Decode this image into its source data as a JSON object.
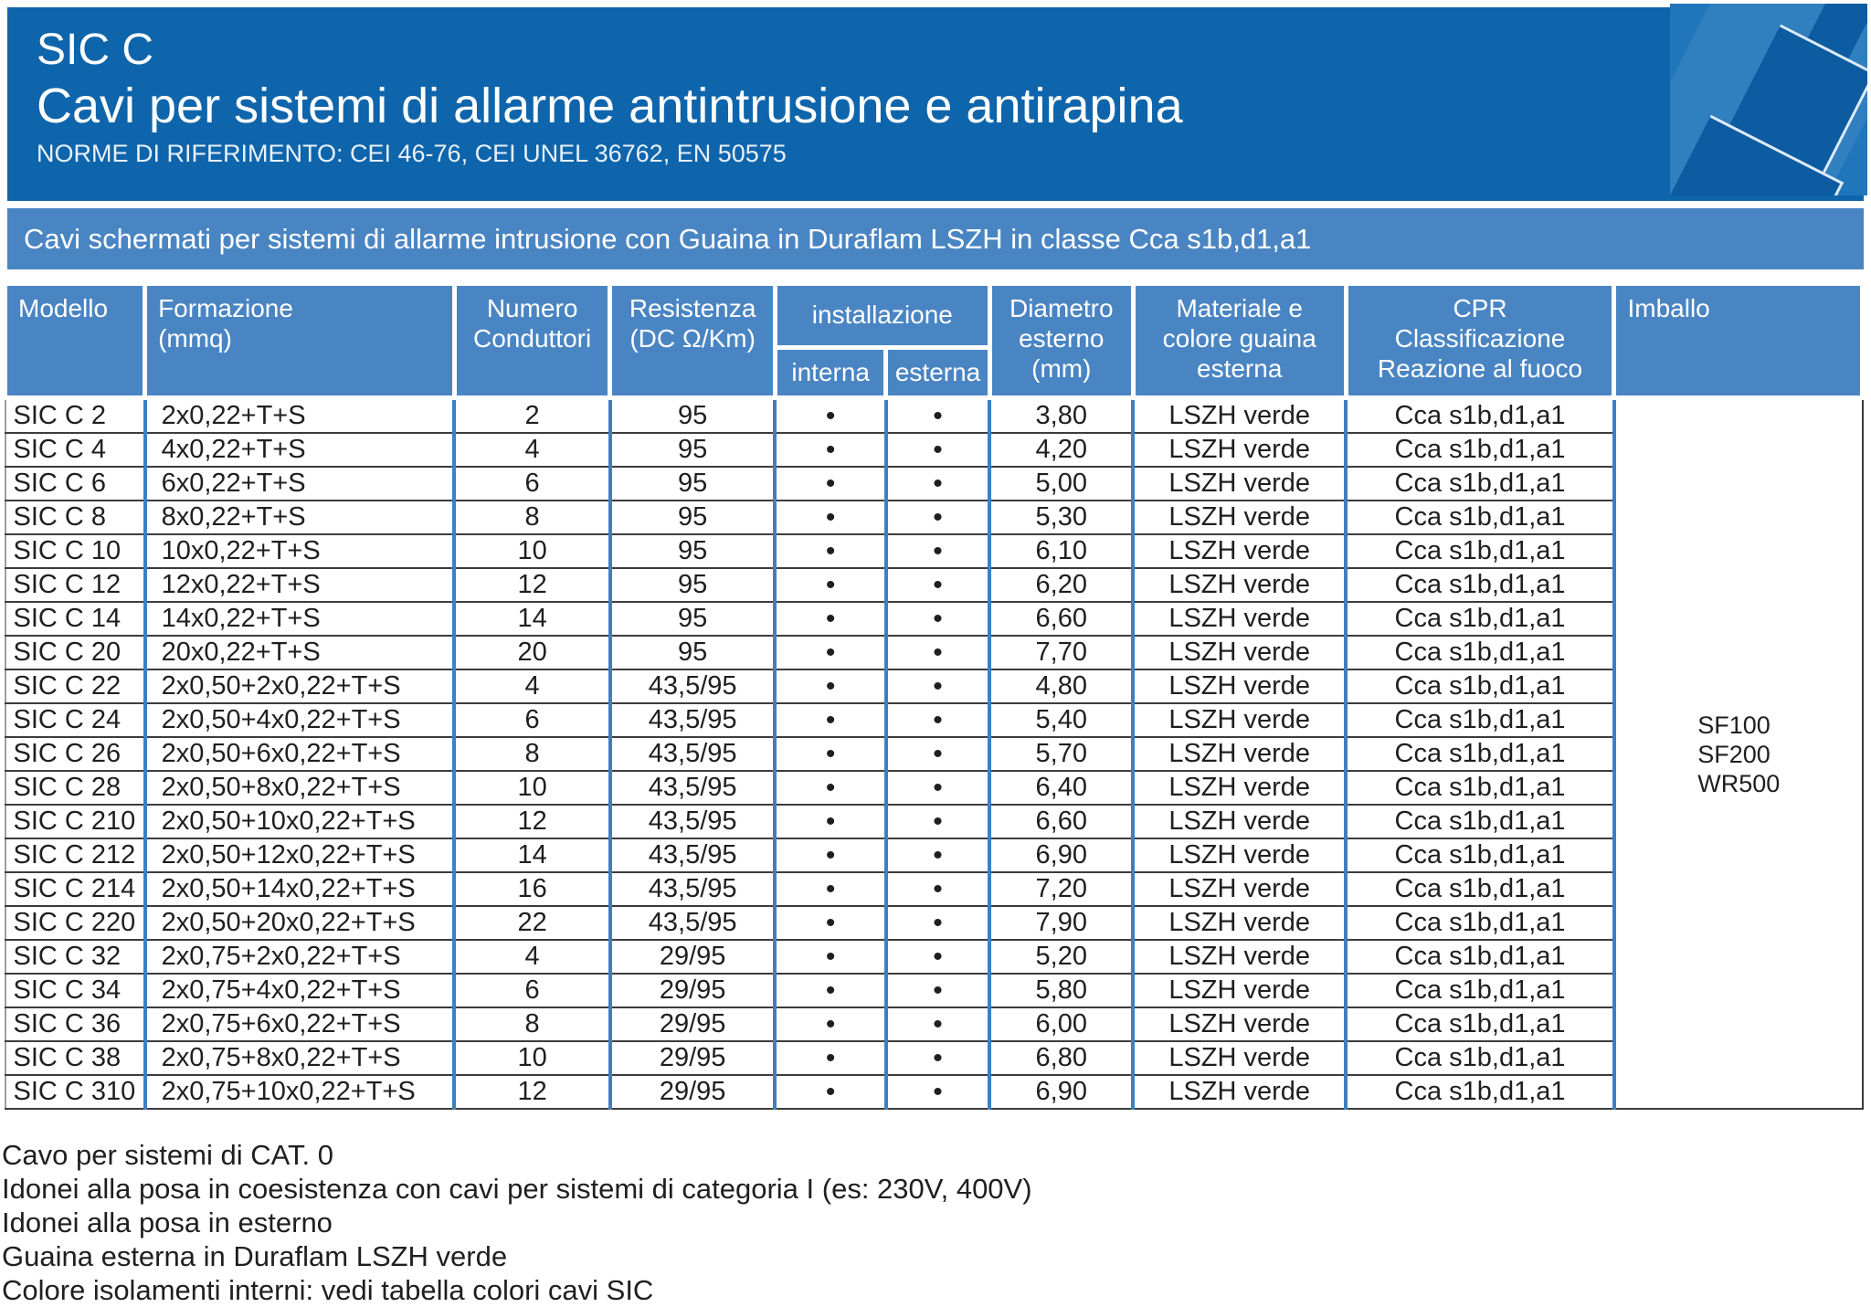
{
  "header": {
    "product": "SIC C",
    "title": "Cavi per sistemi di allarme antintrusione e antirapina",
    "norms": "NORME DI RIFERIMENTO: CEI 46-76, CEI UNEL 36762, EN 50575"
  },
  "banner": {
    "text": "Cavi schermati per sistemi di allarme intrusione con Guaina in Duraflam LSZH in classe Cca s1b,d1,a1"
  },
  "table": {
    "headers": {
      "modello": "Modello",
      "formazione": "Formazione\n(mmq)",
      "numero": "Numero\nConduttori",
      "resistenza": "Resistenza\n(DC Ω/Km)",
      "installazione": "installazione",
      "interna": "interna",
      "esterna": "esterna",
      "diametro": "Diametro\nesterno\n(mm)",
      "materiale": "Materiale e\ncolore guaina\nesterna",
      "cpr": "CPR\nClassificazione\nReazione al fuoco",
      "imballo": "Imballo"
    },
    "dot": "•",
    "imballo": [
      "SF100",
      "SF200",
      "WR500"
    ],
    "rows": [
      {
        "model": "SIC C 2",
        "formation": "2x0,22+T+S",
        "conductors": "2",
        "resistance": "95",
        "interna": true,
        "esterna": true,
        "diameter": "3,80",
        "material": "LSZH verde",
        "cpr": "Cca s1b,d1,a1"
      },
      {
        "model": "SIC C 4",
        "formation": "4x0,22+T+S",
        "conductors": "4",
        "resistance": "95",
        "interna": true,
        "esterna": true,
        "diameter": "4,20",
        "material": "LSZH verde",
        "cpr": "Cca s1b,d1,a1"
      },
      {
        "model": "SIC C 6",
        "formation": "6x0,22+T+S",
        "conductors": "6",
        "resistance": "95",
        "interna": true,
        "esterna": true,
        "diameter": "5,00",
        "material": "LSZH verde",
        "cpr": "Cca s1b,d1,a1"
      },
      {
        "model": "SIC C 8",
        "formation": "8x0,22+T+S",
        "conductors": "8",
        "resistance": "95",
        "interna": true,
        "esterna": true,
        "diameter": "5,30",
        "material": "LSZH verde",
        "cpr": "Cca s1b,d1,a1"
      },
      {
        "model": "SIC C 10",
        "formation": "10x0,22+T+S",
        "conductors": "10",
        "resistance": "95",
        "interna": true,
        "esterna": true,
        "diameter": "6,10",
        "material": "LSZH verde",
        "cpr": "Cca s1b,d1,a1"
      },
      {
        "model": "SIC C 12",
        "formation": "12x0,22+T+S",
        "conductors": "12",
        "resistance": "95",
        "interna": true,
        "esterna": true,
        "diameter": "6,20",
        "material": "LSZH verde",
        "cpr": "Cca s1b,d1,a1"
      },
      {
        "model": "SIC C 14",
        "formation": "14x0,22+T+S",
        "conductors": "14",
        "resistance": "95",
        "interna": true,
        "esterna": true,
        "diameter": "6,60",
        "material": "LSZH verde",
        "cpr": "Cca s1b,d1,a1"
      },
      {
        "model": "SIC C 20",
        "formation": "20x0,22+T+S",
        "conductors": "20",
        "resistance": "95",
        "interna": true,
        "esterna": true,
        "diameter": "7,70",
        "material": "LSZH verde",
        "cpr": "Cca s1b,d1,a1"
      },
      {
        "model": "SIC C 22",
        "formation": "2x0,50+2x0,22+T+S",
        "conductors": "4",
        "resistance": "43,5/95",
        "interna": true,
        "esterna": true,
        "diameter": "4,80",
        "material": "LSZH verde",
        "cpr": "Cca s1b,d1,a1"
      },
      {
        "model": "SIC C 24",
        "formation": "2x0,50+4x0,22+T+S",
        "conductors": "6",
        "resistance": "43,5/95",
        "interna": true,
        "esterna": true,
        "diameter": "5,40",
        "material": "LSZH verde",
        "cpr": "Cca s1b,d1,a1"
      },
      {
        "model": "SIC C 26",
        "formation": "2x0,50+6x0,22+T+S",
        "conductors": "8",
        "resistance": "43,5/95",
        "interna": true,
        "esterna": true,
        "diameter": "5,70",
        "material": "LSZH verde",
        "cpr": "Cca s1b,d1,a1"
      },
      {
        "model": "SIC C 28",
        "formation": "2x0,50+8x0,22+T+S",
        "conductors": "10",
        "resistance": "43,5/95",
        "interna": true,
        "esterna": true,
        "diameter": "6,40",
        "material": "LSZH verde",
        "cpr": "Cca s1b,d1,a1"
      },
      {
        "model": "SIC C 210",
        "formation": "2x0,50+10x0,22+T+S",
        "conductors": "12",
        "resistance": "43,5/95",
        "interna": true,
        "esterna": true,
        "diameter": "6,60",
        "material": "LSZH verde",
        "cpr": "Cca s1b,d1,a1"
      },
      {
        "model": "SIC C 212",
        "formation": "2x0,50+12x0,22+T+S",
        "conductors": "14",
        "resistance": "43,5/95",
        "interna": true,
        "esterna": true,
        "diameter": "6,90",
        "material": "LSZH verde",
        "cpr": "Cca s1b,d1,a1"
      },
      {
        "model": "SIC C 214",
        "formation": "2x0,50+14x0,22+T+S",
        "conductors": "16",
        "resistance": "43,5/95",
        "interna": true,
        "esterna": true,
        "diameter": "7,20",
        "material": "LSZH verde",
        "cpr": "Cca s1b,d1,a1"
      },
      {
        "model": "SIC C 220",
        "formation": "2x0,50+20x0,22+T+S",
        "conductors": "22",
        "resistance": "43,5/95",
        "interna": true,
        "esterna": true,
        "diameter": "7,90",
        "material": "LSZH verde",
        "cpr": "Cca s1b,d1,a1"
      },
      {
        "model": "SIC C 32",
        "formation": "2x0,75+2x0,22+T+S",
        "conductors": "4",
        "resistance": "29/95",
        "interna": true,
        "esterna": true,
        "diameter": "5,20",
        "material": "LSZH verde",
        "cpr": "Cca s1b,d1,a1"
      },
      {
        "model": "SIC C 34",
        "formation": "2x0,75+4x0,22+T+S",
        "conductors": "6",
        "resistance": "29/95",
        "interna": true,
        "esterna": true,
        "diameter": "5,80",
        "material": "LSZH verde",
        "cpr": "Cca s1b,d1,a1"
      },
      {
        "model": "SIC C 36",
        "formation": "2x0,75+6x0,22+T+S",
        "conductors": "8",
        "resistance": "29/95",
        "interna": true,
        "esterna": true,
        "diameter": "6,00",
        "material": "LSZH verde",
        "cpr": "Cca s1b,d1,a1"
      },
      {
        "model": "SIC C 38",
        "formation": "2x0,75+8x0,22+T+S",
        "conductors": "10",
        "resistance": "29/95",
        "interna": true,
        "esterna": true,
        "diameter": "6,80",
        "material": "LSZH verde",
        "cpr": "Cca s1b,d1,a1"
      },
      {
        "model": "SIC C 310",
        "formation": "2x0,75+10x0,22+T+S",
        "conductors": "12",
        "resistance": "29/95",
        "interna": true,
        "esterna": true,
        "diameter": "6,90",
        "material": "LSZH verde",
        "cpr": "Cca s1b,d1,a1"
      }
    ]
  },
  "notes": [
    "Cavo per sistemi di CAT. 0",
    "Idonei alla posa in coesistenza con cavi per sistemi di categoria I (es: 230V, 400V)",
    "Idonei alla posa in esterno",
    "Guaina esterna in Duraflam LSZH verde",
    "Colore isolamenti interni: vedi tabella colori cavi SIC"
  ],
  "colors": {
    "header_blue": "#0f65ab",
    "icon_panel_blue": "#2176bb",
    "cable_blue": "#0d5ca1",
    "band_blue": "#4a85c3",
    "body_column_line_blue": "#3f7fc1",
    "row_line_dark": "#3c3c3c",
    "text_dark": "#1f1f1f",
    "text_white": "#ffffff"
  }
}
